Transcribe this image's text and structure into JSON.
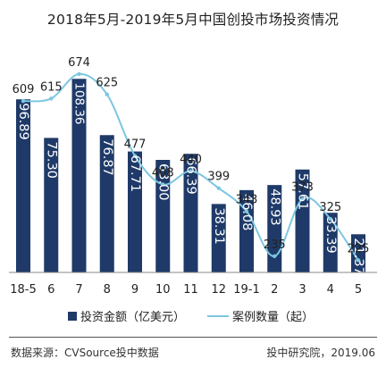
{
  "chart_data": {
    "type": "bar",
    "title": "2018年5月-2019年5月中国创投市场投资情况",
    "categories": [
      "18-5",
      "6",
      "7",
      "8",
      "9",
      "10",
      "11",
      "12",
      "19-1",
      "2",
      "3",
      "4",
      "5"
    ],
    "series": [
      {
        "name": "投资金额（亿美元）",
        "type": "bar",
        "color": "#1f3a68",
        "values": [
          96.89,
          75.3,
          108.36,
          76.87,
          67.71,
          63.0,
          66.39,
          38.31,
          46.08,
          48.93,
          57.61,
          33.39,
          21.37
        ],
        "labels": [
          "96.89",
          "75.30",
          "108.36",
          "76.87",
          "67.71",
          "63.00",
          "66.39",
          "38.31",
          "46.08",
          "48.93",
          "57.61",
          "33.39",
          "21.37"
        ]
      },
      {
        "name": "案例数量（起）",
        "type": "line",
        "color": "#7cc7e0",
        "values": [
          609,
          615,
          674,
          625,
          477,
          408,
          440,
          399,
          343,
          235,
          373,
          325,
          225
        ]
      }
    ],
    "ylim": [
      0,
      115
    ],
    "y2lim": [
      0,
      700
    ],
    "grid": false,
    "legend": "bottom"
  },
  "footer": {
    "source": "数据来源：CVSource投中数据",
    "credit": "投中研究院，2019.06"
  }
}
